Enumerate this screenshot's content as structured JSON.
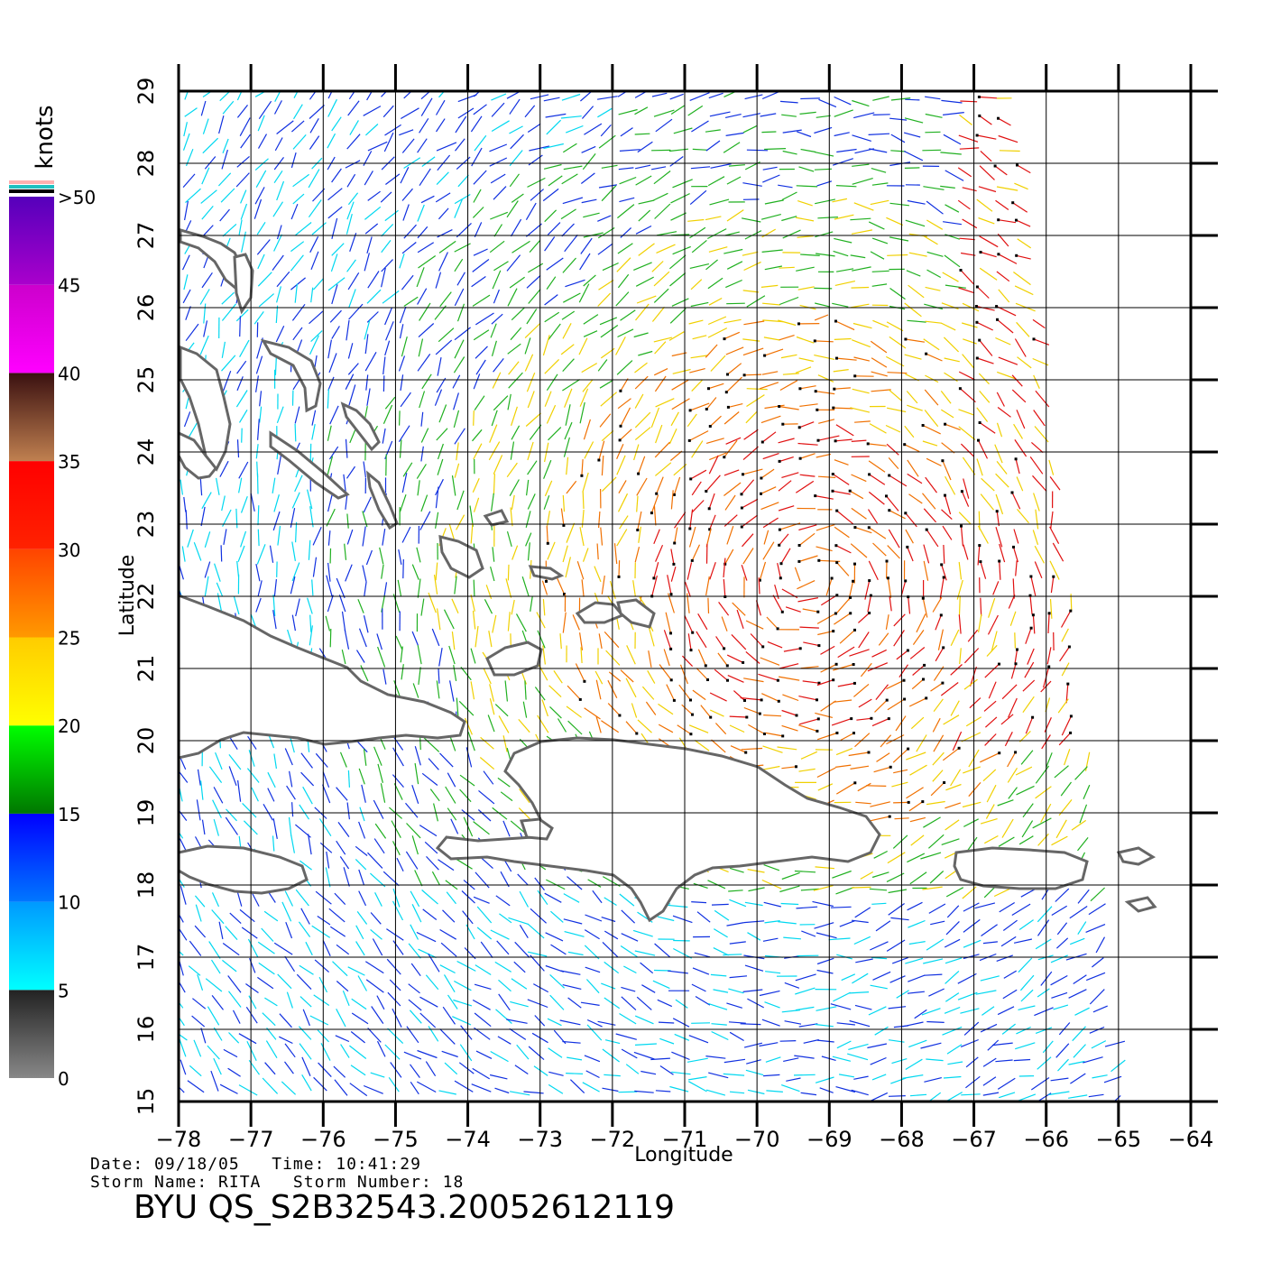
{
  "chart_data": {
    "type": "wind-vector-map",
    "xlabel": "Longitude",
    "ylabel": "Latitude",
    "xlim": [
      -78,
      -64
    ],
    "ylim": [
      15,
      29
    ],
    "x_ticks": [
      -78,
      -77,
      -76,
      -75,
      -74,
      -73,
      -72,
      -71,
      -70,
      -69,
      -68,
      -67,
      -66,
      -65,
      -64
    ],
    "y_ticks": [
      15,
      16,
      17,
      18,
      19,
      20,
      21,
      22,
      23,
      24,
      25,
      26,
      27,
      28,
      29
    ],
    "grid": true,
    "colorbar": {
      "title": "knots",
      "placement": "left",
      "labels": [
        "0",
        "5",
        "10",
        "15",
        "20",
        "25",
        "30",
        "35",
        "40",
        "45",
        ">50"
      ],
      "bands": [
        {
          "from": 0,
          "to": 5,
          "colors": [
            "#888888",
            "#222222"
          ]
        },
        {
          "from": 5,
          "to": 10,
          "colors": [
            "#00ffff",
            "#0099ff"
          ]
        },
        {
          "from": 10,
          "to": 15,
          "colors": [
            "#0077ff",
            "#0000ff"
          ]
        },
        {
          "from": 15,
          "to": 20,
          "colors": [
            "#007700",
            "#00ff00"
          ]
        },
        {
          "from": 20,
          "to": 25,
          "colors": [
            "#ffff00",
            "#ffcc00"
          ]
        },
        {
          "from": 25,
          "to": 30,
          "colors": [
            "#ff9900",
            "#ff4400"
          ]
        },
        {
          "from": 30,
          "to": 35,
          "colors": [
            "#ff2200",
            "#ff0000"
          ]
        },
        {
          "from": 35,
          "to": 40,
          "colors": [
            "#c08050",
            "#3a1010"
          ]
        },
        {
          "from": 40,
          "to": 45,
          "colors": [
            "#ff00ff",
            "#cc00cc"
          ]
        },
        {
          "from": 45,
          "to": 50,
          "colors": [
            "#aa00cc",
            "#5500bb"
          ]
        }
      ],
      "cap_colors": [
        "#ffb0b0",
        "#20c0c0",
        "#000000"
      ]
    },
    "coast_color": "#666666",
    "vector_colors": {
      "light": "#00d8f0",
      "moderate": "#1030e0",
      "fresh": "#20b020",
      "strong": "#f0d000",
      "gale": "#f07000",
      "storm": "#e01010"
    }
  },
  "footer": {
    "line1": "Date: 09/18/05   Time: 10:41:29",
    "line2": "Storm Name: RITA   Storm Number: 18",
    "file_id": "BYU QS_S2B32543.20052612119"
  }
}
